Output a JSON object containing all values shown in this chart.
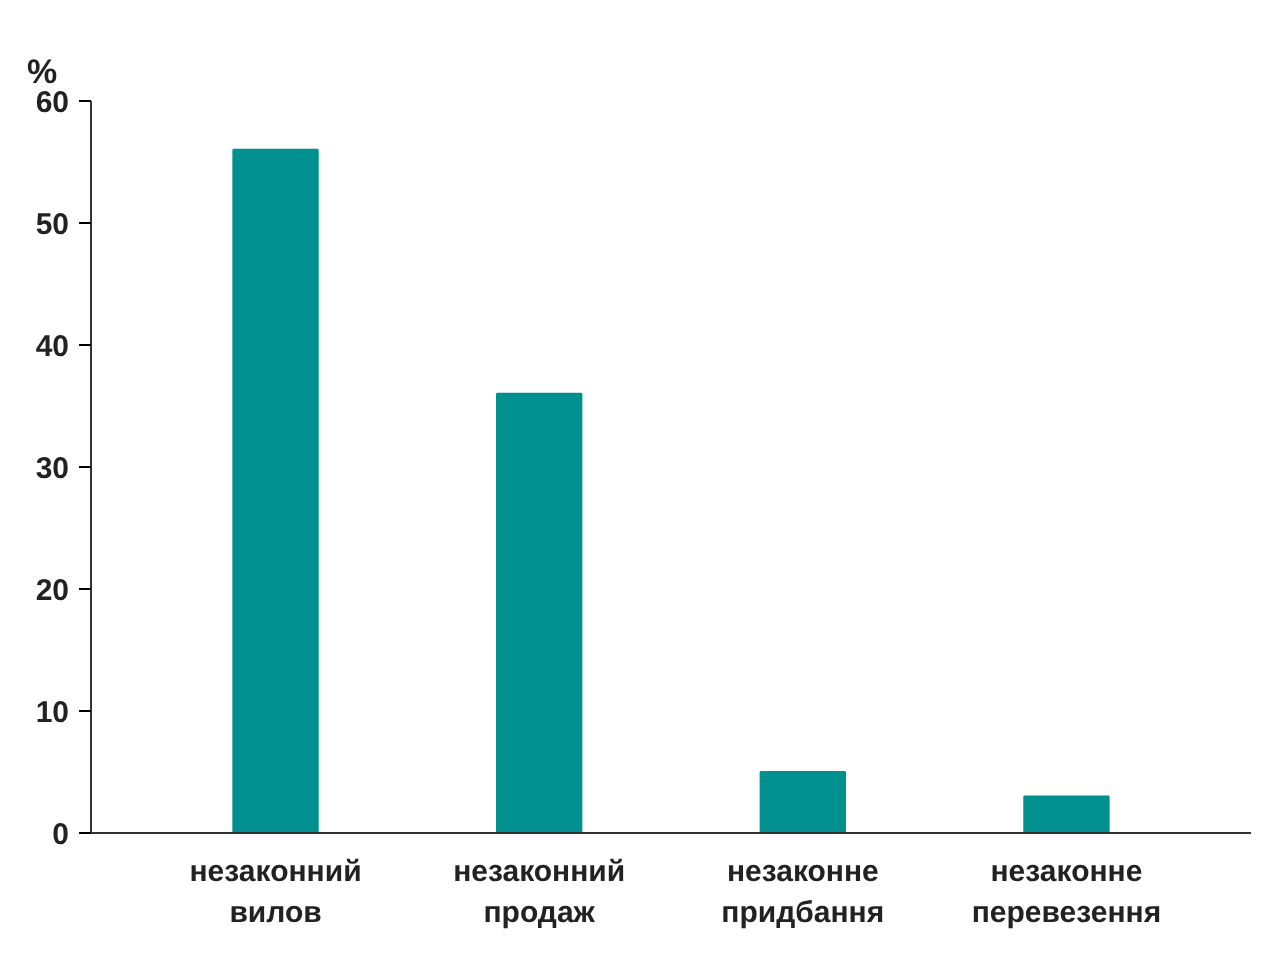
{
  "chart_data": {
    "type": "bar",
    "ylabel": "%",
    "categories": [
      "незаконний вилов",
      "незаконний продаж",
      "незаконне придбання",
      "незаконне перевезення"
    ],
    "values": [
      56,
      36,
      5,
      3
    ],
    "color": "#009090",
    "ylim": [
      0,
      60
    ],
    "yticks": [
      0,
      10,
      20,
      30,
      40,
      50,
      60
    ],
    "grid": false
  }
}
